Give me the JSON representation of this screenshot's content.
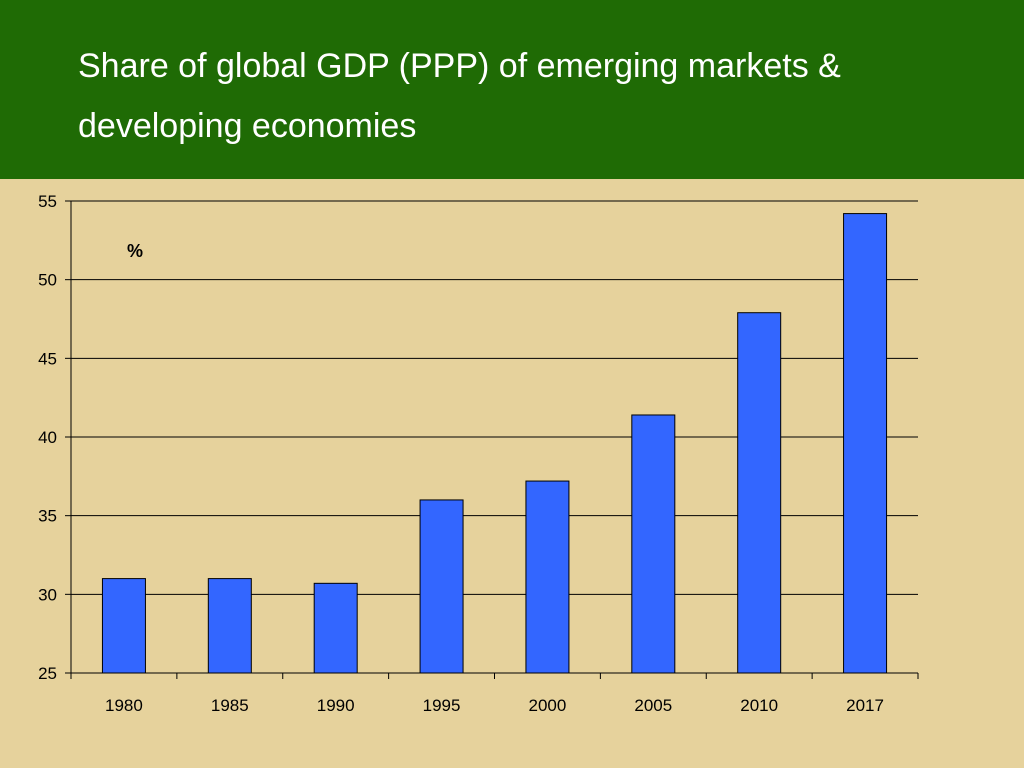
{
  "slide": {
    "title_line1": "Share of global GDP (PPP) of emerging markets &",
    "title_line2": "developing economies",
    "background_color": "#e6d29c",
    "header_color": "#1f6b05"
  },
  "chart_data": {
    "type": "bar",
    "title": "Share of global GDP (PPP) of emerging markets & developing economies",
    "unit_label": "%",
    "categories": [
      "1980",
      "1985",
      "1990",
      "1995",
      "2000",
      "2005",
      "2010",
      "2017"
    ],
    "values": [
      31.0,
      31.0,
      30.7,
      36.0,
      37.2,
      41.4,
      47.9,
      54.2
    ],
    "ylim": [
      25,
      55
    ],
    "yticks": [
      25,
      30,
      35,
      40,
      45,
      50,
      55
    ],
    "grid": true,
    "bar_color": "#3366ff"
  }
}
